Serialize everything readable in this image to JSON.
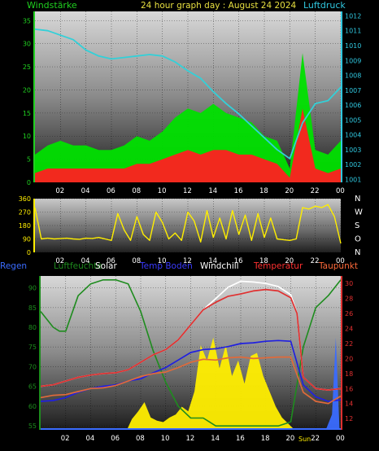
{
  "header": {
    "left_label": "Windstärke",
    "title": "24 hour graph day : August 24 2024",
    "right_label": "Luftdruck"
  },
  "legend": [
    {
      "name": "Regen",
      "color": "#3a6cff"
    },
    {
      "name": "Luftfeuchte",
      "color": "#1e8c1e"
    },
    {
      "name": "Solar",
      "color": "#ffffff"
    },
    {
      "name": "Temp Boden",
      "color": "#3a3aff"
    },
    {
      "name": "Windchill",
      "color": "#ffffff"
    },
    {
      "name": "Temperatur",
      "color": "#ff3030"
    },
    {
      "name": "Taupunkt",
      "color": "#ff6a3a"
    }
  ],
  "wind_dir_labels": [
    "N",
    "W",
    "S",
    "O",
    "N"
  ],
  "sunrise_label": "Sun",
  "chart_data": [
    {
      "type": "line",
      "x_ticks": [
        "02",
        "04",
        "06",
        "08",
        "10",
        "12",
        "14",
        "16",
        "18",
        "20",
        "22",
        "00"
      ],
      "y_left": {
        "ticks": [
          0,
          5,
          10,
          15,
          20,
          25,
          30,
          35
        ],
        "range": [
          0,
          37
        ]
      },
      "y_right": {
        "ticks": [
          1001,
          1002,
          1003,
          1004,
          1005,
          1006,
          1007,
          1008,
          1009,
          1010,
          1011,
          1012
        ],
        "range": [
          1000.8,
          1012.3
        ]
      },
      "series": [
        {
          "name": "Windstärke",
          "color": "#00e000",
          "x": [
            0,
            1,
            2,
            3,
            4,
            5,
            6,
            7,
            8,
            9,
            10,
            11,
            12,
            13,
            14,
            15,
            16,
            17,
            18,
            19,
            20,
            21,
            22,
            23,
            24
          ],
          "values": [
            6,
            8,
            9,
            8,
            8,
            7,
            7,
            8,
            10,
            9,
            11,
            14,
            16,
            15,
            17,
            15,
            14,
            13,
            10,
            9,
            3,
            28,
            7,
            6,
            9
          ]
        },
        {
          "name": "Windböen",
          "color": "#ff2020",
          "x": [
            0,
            1,
            2,
            3,
            4,
            5,
            6,
            7,
            8,
            9,
            10,
            11,
            12,
            13,
            14,
            15,
            16,
            17,
            18,
            19,
            20,
            21,
            22,
            23,
            24
          ],
          "values": [
            2,
            3,
            3,
            3,
            3,
            3,
            3,
            3,
            4,
            4,
            5,
            6,
            7,
            6,
            7,
            7,
            6,
            6,
            5,
            4,
            1,
            16,
            3,
            2,
            3
          ]
        },
        {
          "name": "Luftdruck",
          "color": "#33d0d8",
          "x": [
            0,
            1,
            2,
            3,
            4,
            5,
            6,
            7,
            8,
            9,
            10,
            11,
            12,
            13,
            14,
            15,
            16,
            17,
            18,
            19,
            20,
            21,
            22,
            23,
            24
          ],
          "values": [
            1011.1,
            1011.0,
            1010.7,
            1010.4,
            1009.7,
            1009.3,
            1009.1,
            1009.2,
            1009.3,
            1009.4,
            1009.3,
            1008.9,
            1008.3,
            1007.8,
            1006.9,
            1006.1,
            1005.4,
            1004.6,
            1003.8,
            1003.0,
            1002.4,
            1004.8,
            1006.1,
            1006.3,
            1007.2
          ]
        }
      ]
    },
    {
      "type": "line",
      "x_ticks": [
        "02",
        "04",
        "06",
        "08",
        "10",
        "12",
        "14",
        "16",
        "18",
        "20",
        "22",
        "00"
      ],
      "y_left": {
        "ticks": [
          0,
          90,
          180,
          270,
          360
        ],
        "range": [
          0,
          360
        ]
      },
      "series": [
        {
          "name": "Windrichtung",
          "color": "#ffee00",
          "x": [
            0,
            0.5,
            1,
            1.5,
            2,
            2.5,
            3,
            3.5,
            4,
            4.5,
            5,
            5.5,
            6,
            6.5,
            7,
            7.5,
            8,
            8.5,
            9,
            9.5,
            10,
            10.5,
            11,
            11.5,
            12,
            12.5,
            13,
            13.5,
            14,
            14.5,
            15,
            15.5,
            16,
            16.5,
            17,
            17.5,
            18,
            18.5,
            19,
            19.5,
            20,
            20.5,
            21,
            21.5,
            22,
            22.5,
            23,
            23.5,
            24
          ],
          "values": [
            300,
            90,
            95,
            90,
            92,
            95,
            90,
            88,
            95,
            93,
            100,
            90,
            80,
            260,
            150,
            80,
            240,
            120,
            80,
            270,
            200,
            90,
            130,
            80,
            270,
            210,
            70,
            280,
            100,
            230,
            90,
            280,
            120,
            250,
            80,
            260,
            100,
            230,
            90,
            85,
            80,
            90,
            300,
            290,
            310,
            300,
            320,
            240,
            60
          ]
        }
      ]
    },
    {
      "type": "line",
      "x_ticks": [
        "02",
        "04",
        "06",
        "08",
        "10",
        "12",
        "14",
        "16",
        "18",
        "20",
        "22",
        "00"
      ],
      "y_left": {
        "ticks": [
          55,
          60,
          65,
          70,
          75,
          80,
          85,
          90
        ],
        "range": [
          54,
          93
        ]
      },
      "y_right": {
        "ticks": [
          12,
          14,
          16,
          18,
          20,
          22,
          24,
          26,
          28,
          30
        ],
        "range": [
          10.5,
          31
        ]
      },
      "series": [
        {
          "name": "Luftfeuchte",
          "color": "#1e8c1e",
          "x": [
            0,
            1,
            1.5,
            2,
            3,
            4,
            5,
            6,
            7,
            8,
            9,
            10,
            11,
            12,
            13,
            14,
            15,
            16,
            17,
            18,
            19,
            20,
            21,
            22,
            23,
            24
          ],
          "values": [
            84,
            80,
            79,
            79,
            88,
            91,
            92,
            92,
            91,
            84,
            74,
            66,
            60,
            57,
            57,
            55,
            55,
            55,
            55,
            55,
            55,
            56,
            75,
            85,
            88,
            92
          ]
        },
        {
          "name": "Temperatur",
          "color": "#e03030",
          "x": [
            0,
            1,
            2,
            3,
            4,
            5,
            6,
            7,
            8,
            9,
            10,
            11,
            12,
            13,
            14,
            15,
            16,
            17,
            18,
            19,
            20,
            20.5,
            21,
            22,
            23,
            24
          ],
          "values": [
            16.3,
            16.5,
            17.0,
            17.5,
            17.8,
            18.0,
            18.1,
            18.5,
            19.5,
            20.5,
            21.2,
            22.5,
            24.5,
            26.5,
            27.5,
            28.3,
            28.6,
            29.0,
            29.2,
            29.0,
            28.1,
            26.0,
            17.5,
            16.0,
            15.8,
            16.0
          ]
        },
        {
          "name": "Windchill",
          "color": "#ffffff",
          "x": [
            0,
            1,
            2,
            3,
            4,
            5,
            6,
            7,
            8,
            9,
            10,
            11,
            12,
            13,
            14,
            15,
            16,
            17,
            18,
            19,
            20,
            20.5,
            21,
            22,
            23,
            24
          ],
          "values": [
            16.3,
            16.5,
            17.0,
            17.5,
            17.8,
            18.0,
            18.1,
            18.5,
            19.5,
            20.5,
            21.2,
            22.5,
            24.5,
            26.5,
            28.0,
            29.5,
            30.3,
            30.2,
            30.0,
            29.6,
            28.5,
            26.0,
            17.5,
            16.0,
            15.8,
            16.0
          ]
        },
        {
          "name": "Taupunkt",
          "color": "#e06a3a",
          "x": [
            0,
            1,
            2,
            3,
            4,
            5,
            6,
            7,
            8,
            9,
            10,
            11,
            12,
            13,
            14,
            15,
            16,
            17,
            18,
            19,
            20,
            21,
            22,
            23,
            24
          ],
          "values": [
            14.8,
            15.1,
            15.2,
            15.6,
            16.0,
            16.1,
            16.4,
            17.0,
            17.6,
            18.0,
            18.2,
            18.8,
            19.5,
            19.9,
            19.8,
            20.1,
            20.2,
            20.0,
            20.1,
            20.2,
            20.2,
            15.5,
            14.3,
            14.0,
            15.0
          ]
        },
        {
          "name": "Temp Boden",
          "color": "#2020e0",
          "x": [
            0,
            1,
            2,
            3,
            4,
            5,
            6,
            7,
            8,
            9,
            10,
            11,
            12,
            13,
            14,
            15,
            16,
            17,
            18,
            19,
            20,
            21,
            22,
            23,
            24
          ],
          "values": [
            14.3,
            14.4,
            14.8,
            15.5,
            16.0,
            16.3,
            16.5,
            17.0,
            17.3,
            18.1,
            18.8,
            19.8,
            20.8,
            21.2,
            21.3,
            21.6,
            22.0,
            22.1,
            22.3,
            22.4,
            22.3,
            16.5,
            14.9,
            14.3,
            14.5
          ]
        },
        {
          "name": "Solar",
          "color": "#ffee00",
          "x": [
            0,
            6.9,
            7.3,
            7.8,
            8.3,
            8.8,
            9.3,
            9.8,
            10.3,
            10.8,
            11.3,
            11.8,
            12.3,
            12.8,
            13.3,
            13.8,
            14.3,
            14.8,
            15.3,
            15.8,
            16.3,
            16.8,
            17.3,
            17.8,
            18.3,
            18.8,
            19.3,
            19.8,
            20.3,
            24
          ],
          "values": [
            0,
            0,
            0.07,
            0.12,
            0.18,
            0.08,
            0.06,
            0.05,
            0.08,
            0.1,
            0.15,
            0.12,
            0.25,
            0.55,
            0.45,
            0.6,
            0.4,
            0.55,
            0.35,
            0.45,
            0.3,
            0.48,
            0.5,
            0.35,
            0.25,
            0.15,
            0.08,
            0.04,
            0,
            0
          ]
        },
        {
          "name": "Regen",
          "color": "#3a6cff",
          "x": [
            0,
            22.8,
            23.3,
            23.6,
            23.9,
            24
          ],
          "values": [
            0,
            0,
            0.1,
            0.6,
            0,
            0
          ]
        }
      ]
    }
  ]
}
